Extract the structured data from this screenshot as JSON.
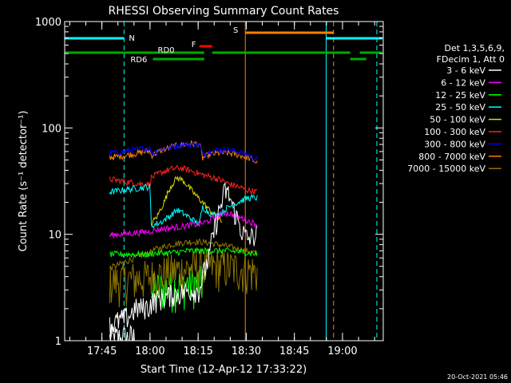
{
  "chart_data": {
    "type": "line",
    "title": "RHESSI Observing Summary Count Rates",
    "xlabel": "Start Time (12-Apr-12 17:33:22)",
    "ylabel": "Count Rate (s⁻¹ detector⁻¹)",
    "yscale": "log",
    "ylim": [
      1,
      1000
    ],
    "y_ticks": [
      {
        "value": 1,
        "label": "1"
      },
      {
        "value": 10,
        "label": "10"
      },
      {
        "value": 100,
        "label": "100"
      },
      {
        "value": 1000,
        "label": "1000"
      }
    ],
    "xlim_minutes": [
      0,
      99.3
    ],
    "x_ticks": [
      {
        "value": 11.6,
        "label": "17:45"
      },
      {
        "value": 26.6,
        "label": "18:00"
      },
      {
        "value": 41.6,
        "label": "18:15"
      },
      {
        "value": 56.6,
        "label": "18:30"
      },
      {
        "value": 71.6,
        "label": "18:45"
      },
      {
        "value": 86.6,
        "label": "19:00"
      }
    ],
    "legend_header": [
      "Det 1,3,5,6,9,",
      "FDecim 1, Att 0"
    ],
    "series": [
      {
        "name": "3 - 6 keV",
        "color": "#ffffff",
        "label": "3 - 6 keV",
        "points": [
          [
            14,
            1.4
          ],
          [
            16,
            1.5
          ],
          [
            18,
            1.6
          ],
          [
            20,
            1.7
          ],
          [
            22,
            2.0
          ],
          [
            26.5,
            2.1
          ],
          [
            27,
            2.3
          ],
          [
            30,
            2.5
          ],
          [
            33,
            2.7
          ],
          [
            36,
            2.8
          ],
          [
            39,
            3.0
          ],
          [
            42,
            3.0
          ],
          [
            45,
            6
          ],
          [
            47,
            12
          ],
          [
            49,
            20
          ],
          [
            50,
            26
          ],
          [
            51,
            24
          ],
          [
            53,
            16
          ],
          [
            55,
            11
          ],
          [
            57,
            9
          ],
          [
            60,
            10
          ]
        ]
      },
      {
        "name": "6 - 12 keV",
        "color": "#ff00ff",
        "label": "6 - 12 keV",
        "points": [
          [
            14,
            9.8
          ],
          [
            20,
            10.2
          ],
          [
            26.5,
            10.6
          ],
          [
            27,
            10.8
          ],
          [
            30,
            11.2
          ],
          [
            33,
            11.5
          ],
          [
            36,
            11.8
          ],
          [
            39,
            12.2
          ],
          [
            42,
            12.5
          ],
          [
            44,
            13
          ],
          [
            46,
            14
          ],
          [
            48,
            15
          ],
          [
            50,
            16
          ],
          [
            52,
            15.5
          ],
          [
            54,
            14.5
          ],
          [
            56,
            14
          ],
          [
            58,
            13
          ],
          [
            60,
            12.5
          ]
        ]
      },
      {
        "name": "12 - 25 keV",
        "color": "#00ff00",
        "label": "12 - 25 keV",
        "points": [
          [
            14,
            6.5
          ],
          [
            20,
            6.5
          ],
          [
            26.5,
            6.5
          ],
          [
            27,
            6.6
          ],
          [
            33,
            6.7
          ],
          [
            39,
            7
          ],
          [
            44,
            7
          ],
          [
            50,
            7
          ],
          [
            56,
            6.8
          ],
          [
            60,
            6.5
          ]
        ]
      },
      {
        "name": "25 - 50 keV",
        "color": "#00ffff",
        "label": "25 - 50 keV",
        "points": [
          [
            14,
            25
          ],
          [
            20,
            26.5
          ],
          [
            26.5,
            28
          ],
          [
            27,
            12
          ],
          [
            30,
            13
          ],
          [
            33,
            15
          ],
          [
            35,
            17
          ],
          [
            38,
            15
          ],
          [
            41,
            13
          ],
          [
            42,
            12.5
          ],
          [
            43,
            18
          ],
          [
            45,
            16
          ],
          [
            47,
            15
          ],
          [
            49,
            16
          ],
          [
            51,
            18
          ],
          [
            54,
            20
          ],
          [
            57,
            22
          ],
          [
            60,
            22
          ]
        ]
      },
      {
        "name": "50 - 100 keV",
        "color": "#dddd00",
        "label": "50 - 100 keV",
        "points": [
          [
            27,
            12.5
          ],
          [
            29,
            15
          ],
          [
            31,
            20
          ],
          [
            33,
            28
          ],
          [
            35,
            34
          ],
          [
            37,
            32
          ],
          [
            39,
            27
          ],
          [
            41,
            23
          ],
          [
            43,
            20
          ],
          [
            45,
            17
          ],
          [
            47,
            15
          ],
          [
            49,
            13
          ]
        ]
      },
      {
        "name": "100 - 300 keV",
        "color": "#ff2020",
        "label": "100 - 300 keV",
        "points": [
          [
            14,
            33
          ],
          [
            17,
            32
          ],
          [
            20,
            31
          ],
          [
            23,
            30
          ],
          [
            26.5,
            29.5
          ],
          [
            27,
            34
          ],
          [
            30,
            38
          ],
          [
            33,
            41
          ],
          [
            36,
            42
          ],
          [
            39,
            40
          ],
          [
            42,
            37
          ],
          [
            45,
            35
          ],
          [
            48,
            33
          ],
          [
            51,
            30
          ],
          [
            54,
            28
          ],
          [
            57,
            26
          ],
          [
            60,
            25
          ]
        ]
      },
      {
        "name": "300 - 800 keV",
        "color": "#0000ff",
        "label": "300 - 800 keV",
        "points": [
          [
            14,
            58
          ],
          [
            17,
            59
          ],
          [
            20,
            61
          ],
          [
            23,
            63
          ],
          [
            26.5,
            65
          ],
          [
            27,
            58
          ],
          [
            30,
            62
          ],
          [
            33,
            66
          ],
          [
            36,
            69
          ],
          [
            39,
            70
          ],
          [
            42,
            70
          ],
          [
            43,
            56
          ],
          [
            45,
            60
          ],
          [
            48,
            62
          ],
          [
            51,
            62
          ],
          [
            54,
            60
          ],
          [
            57,
            56
          ],
          [
            59,
            52
          ],
          [
            60,
            50
          ]
        ]
      },
      {
        "name": "800 - 7000 keV",
        "color": "#ff8000",
        "label": "800 - 7000 keV",
        "points": [
          [
            14,
            53
          ],
          [
            17,
            54
          ],
          [
            20,
            56
          ],
          [
            23,
            58
          ],
          [
            26.5,
            61
          ],
          [
            27,
            55
          ],
          [
            30,
            61
          ],
          [
            33,
            66
          ],
          [
            36,
            69
          ],
          [
            39,
            71
          ],
          [
            42,
            71
          ],
          [
            43,
            52
          ],
          [
            45,
            56
          ],
          [
            48,
            58
          ],
          [
            51,
            58
          ],
          [
            54,
            56
          ],
          [
            57,
            53
          ],
          [
            59,
            49
          ],
          [
            60,
            47
          ]
        ]
      },
      {
        "name": "7000 - 15000 keV",
        "color": "#8b7500",
        "label": "7000 - 15000 keV",
        "points": [
          [
            14,
            4.8
          ],
          [
            17,
            5.2
          ],
          [
            20,
            5.7
          ],
          [
            23,
            6.2
          ],
          [
            26.5,
            6.6
          ],
          [
            27,
            7.0
          ],
          [
            30,
            7.5
          ],
          [
            33,
            8
          ],
          [
            36,
            8.3
          ],
          [
            39,
            8.5
          ],
          [
            42,
            8.5
          ],
          [
            45,
            8.3
          ],
          [
            48,
            8
          ],
          [
            51,
            7.7
          ],
          [
            54,
            7.3
          ],
          [
            57,
            7
          ],
          [
            60,
            6.6
          ]
        ]
      }
    ],
    "noise_floor_series": [
      {
        "color": "#ffffff",
        "points": [
          [
            14,
            1.0
          ],
          [
            22,
            1.0
          ]
        ]
      },
      {
        "color": "#00ff00",
        "points": [
          [
            27,
            3.0
          ],
          [
            33,
            3.2
          ],
          [
            39,
            3.5
          ],
          [
            44,
            3.5
          ]
        ]
      },
      {
        "color": "#8b7500",
        "points": [
          [
            14,
            3.6
          ],
          [
            26.5,
            4.0
          ],
          [
            33,
            4.5
          ],
          [
            42,
            5
          ],
          [
            50,
            5
          ],
          [
            60,
            4.5
          ]
        ]
      }
    ],
    "flag_bars": [
      {
        "label": "N",
        "color": "#00ffff",
        "label_color": "#00ffff",
        "y_level": "saa",
        "segments": [
          [
            0,
            18.5
          ],
          [
            81.5,
            99
          ]
        ],
        "label_at": 20
      },
      {
        "label": "F",
        "color": "#ff0000",
        "label_color": "#ff0000",
        "y_level": "flare",
        "segments": [
          [
            42,
            46
          ]
        ],
        "label_at": 39.5
      },
      {
        "label": "S",
        "color": "#ff8000",
        "label_color": "#ff8000",
        "y_level": "saa",
        "segments": [
          [
            56.3,
            83.8
          ]
        ],
        "label_at": 52.5
      },
      {
        "label": "RD0",
        "color": "#00aa00",
        "label_color": "#00aa00",
        "y_level": "rd0",
        "segments": [
          [
            0,
            43.5
          ],
          [
            46,
            89
          ],
          [
            92,
            99
          ]
        ],
        "label_at": 29
      },
      {
        "label": "RD6",
        "color": "#00aa00",
        "label_color": "#00aa00",
        "y_level": "rd6",
        "segments": [
          [
            27.5,
            43.5
          ],
          [
            89,
            94
          ]
        ],
        "label_at": 20.5
      }
    ],
    "vertical_markers": [
      {
        "x": 0,
        "color": "#00ffff",
        "style": "solid"
      },
      {
        "x": 18.5,
        "color": "#00ffff",
        "style": "dashed"
      },
      {
        "x": 56.3,
        "color": "#ff8000",
        "style": "solid"
      },
      {
        "x": 81.5,
        "color": "#00ffff",
        "style": "solid"
      },
      {
        "x": 83.8,
        "color": "#ff8000",
        "style": "dashed"
      },
      {
        "x": 97.3,
        "color": "#00ffff",
        "style": "dashed"
      }
    ],
    "timestamp": "20-Oct-2021 05:46"
  }
}
